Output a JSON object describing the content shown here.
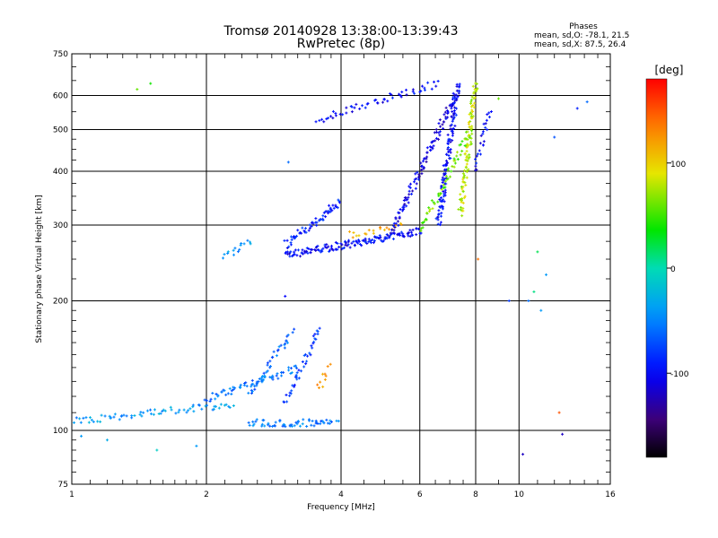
{
  "chart_data": {
    "type": "scatter",
    "title": "Tromsø 20140928 13:38:00-13:39:43",
    "subtitle": "RwPretec (8p)",
    "xlabel": "Frequency [MHz]",
    "ylabel": "Stationary phase Virtual Height [km]",
    "x_scale": "log",
    "y_scale": "log",
    "xlim": [
      1,
      16
    ],
    "ylim": [
      75,
      750
    ],
    "x_ticks": [
      1,
      2,
      4,
      6,
      8,
      10,
      16
    ],
    "x_tick_labels": [
      "1",
      "2",
      "4",
      "6",
      "8",
      "10",
      "16"
    ],
    "y_ticks": [
      75,
      100,
      200,
      300,
      400,
      500,
      600,
      750
    ],
    "y_tick_labels": [
      "75",
      "100",
      "200",
      "300",
      "400",
      "500",
      "600",
      "750"
    ],
    "grid": true,
    "stats": {
      "heading": "Phases",
      "line1": "mean, sd,O: -78.1, 21.5",
      "line2": "mean, sd,X: 87.5, 26.4"
    },
    "colorbar": {
      "label": "[deg]",
      "range": [
        -180,
        180
      ],
      "ticks": [
        100,
        0,
        -100
      ],
      "tick_labels": [
        "100",
        "0",
        "-100"
      ]
    },
    "traces": [
      {
        "x_start": 1.0,
        "x_end": 2.3,
        "h_start": 105,
        "h_end": 115,
        "phase": -40,
        "count": 70
      },
      {
        "x_start": 2.0,
        "x_end": 3.2,
        "h_start": 118,
        "h_end": 140,
        "phase": -55,
        "count": 60
      },
      {
        "x_start": 2.5,
        "x_end": 3.1,
        "h_start": 120,
        "h_end": 170,
        "phase": -60,
        "count": 40
      },
      {
        "x_start": 2.5,
        "x_end": 3.9,
        "h_start": 104,
        "h_end": 104,
        "phase": -55,
        "count": 60
      },
      {
        "x_start": 3.0,
        "x_end": 3.6,
        "h_start": 115,
        "h_end": 175,
        "phase": -80,
        "count": 40
      },
      {
        "x_start": 3.55,
        "x_end": 3.75,
        "h_start": 125,
        "h_end": 140,
        "phase": 130,
        "count": 10
      },
      {
        "x_start": 2.2,
        "x_end": 2.5,
        "h_start": 255,
        "h_end": 275,
        "phase": -40,
        "count": 15
      },
      {
        "x_start": 3.0,
        "x_end": 6.0,
        "h_start": 255,
        "h_end": 290,
        "phase": -100,
        "count": 150
      },
      {
        "x_start": 4.2,
        "x_end": 5.5,
        "h_start": 285,
        "h_end": 300,
        "phase": 120,
        "count": 20
      },
      {
        "x_start": 5.2,
        "x_end": 7.2,
        "h_start": 290,
        "h_end": 600,
        "phase": -110,
        "count": 110
      },
      {
        "x_start": 6.6,
        "x_end": 7.3,
        "h_start": 300,
        "h_end": 640,
        "phase": -100,
        "count": 120
      },
      {
        "x_start": 6.0,
        "x_end": 7.8,
        "h_start": 290,
        "h_end": 500,
        "phase": 60,
        "count": 60
      },
      {
        "x_start": 7.4,
        "x_end": 8.0,
        "h_start": 320,
        "h_end": 640,
        "phase": 80,
        "count": 100
      },
      {
        "x_start": 3.5,
        "x_end": 6.6,
        "h_start": 525,
        "h_end": 640,
        "phase": -100,
        "count": 55
      },
      {
        "x_start": 3.0,
        "x_end": 4.0,
        "h_start": 270,
        "h_end": 340,
        "phase": -90,
        "count": 60
      },
      {
        "x_start": 8.0,
        "x_end": 8.6,
        "h_start": 400,
        "h_end": 560,
        "phase": -100,
        "count": 25
      }
    ],
    "scatter_points": [
      {
        "x": 1.4,
        "y": 620,
        "phase": 60
      },
      {
        "x": 1.5,
        "y": 640,
        "phase": 40
      },
      {
        "x": 1.2,
        "y": 95,
        "phase": -30
      },
      {
        "x": 1.05,
        "y": 97,
        "phase": -40
      },
      {
        "x": 1.9,
        "y": 92,
        "phase": -40
      },
      {
        "x": 1.55,
        "y": 90,
        "phase": -10
      },
      {
        "x": 3.0,
        "y": 205,
        "phase": -100
      },
      {
        "x": 3.05,
        "y": 420,
        "phase": -60
      },
      {
        "x": 10.2,
        "y": 88,
        "phase": -120
      },
      {
        "x": 10.5,
        "y": 200,
        "phase": -60
      },
      {
        "x": 10.8,
        "y": 210,
        "phase": 10
      },
      {
        "x": 11.0,
        "y": 260,
        "phase": 20
      },
      {
        "x": 11.5,
        "y": 230,
        "phase": -40
      },
      {
        "x": 12.0,
        "y": 480,
        "phase": -70
      },
      {
        "x": 12.3,
        "y": 110,
        "phase": 150
      },
      {
        "x": 13.5,
        "y": 560,
        "phase": -90
      },
      {
        "x": 14.2,
        "y": 580,
        "phase": -60
      },
      {
        "x": 9.5,
        "y": 200,
        "phase": -80
      },
      {
        "x": 11.2,
        "y": 190,
        "phase": -40
      },
      {
        "x": 8.1,
        "y": 250,
        "phase": 140
      },
      {
        "x": 9.0,
        "y": 590,
        "phase": 60
      },
      {
        "x": 12.5,
        "y": 98,
        "phase": -120
      }
    ]
  }
}
